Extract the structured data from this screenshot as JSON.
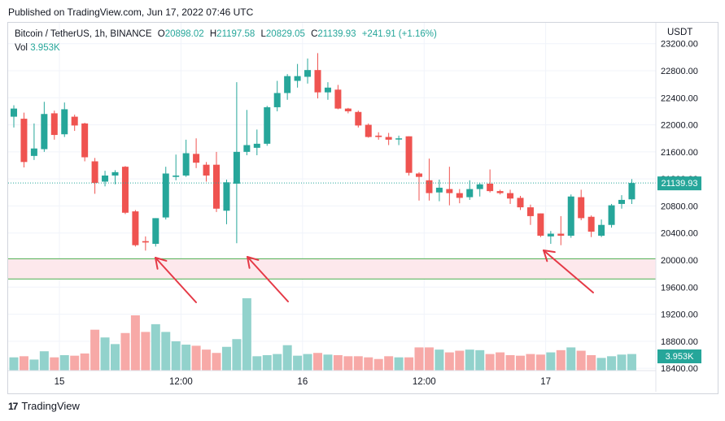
{
  "header": {
    "published_text": "Published on TradingView.com, Jun 17, 2022 07:46 UTC"
  },
  "legend": {
    "symbol": "Bitcoin / TetherUS, 1h, BINANCE",
    "open_label": "O",
    "open": "20898.02",
    "high_label": "H",
    "high": "21197.58",
    "low_label": "L",
    "low": "20829.05",
    "close_label": "C",
    "close": "21139.93",
    "change": "+241.91 (+1.16%)",
    "vol_label": "Vol",
    "vol": "3.953K"
  },
  "price_axis": {
    "currency": "USDT",
    "current_price_label": "21139.93",
    "current_volume_label": "3.953K"
  },
  "footer": {
    "brand": "TradingView"
  },
  "colors": {
    "up": "#26a69a",
    "down": "#ef5350",
    "zone_fill": "#fde8ec",
    "zone_line": "#4caf50",
    "annotation": "#e53946",
    "current_line": "#26a69a"
  },
  "chart_data": {
    "type": "candlestick",
    "title": "Bitcoin / TetherUS, 1h, BINANCE",
    "y_axis": {
      "ticks": [
        18400,
        18800,
        19200,
        19600,
        20000,
        20400,
        20800,
        21200,
        21600,
        22000,
        22400,
        22800,
        23200
      ],
      "tick_labels": [
        "18400.00",
        "18800.00",
        "19200.00",
        "19600.00",
        "20000.00",
        "20400.00",
        "20800.00",
        "21200.00",
        "21600.00",
        "22000.00",
        "22400.00",
        "22800.00",
        "23200.00"
      ],
      "range": [
        18400,
        23230
      ]
    },
    "x_axis": {
      "tick_labels": [
        "15",
        "12:00",
        "16",
        "12:00",
        "17"
      ],
      "tick_candle_index": [
        4.5,
        16.5,
        28.5,
        40.5,
        52.5
      ]
    },
    "current_price": 21139.93,
    "support_zone": [
      19720,
      20020
    ],
    "candles": [
      {
        "o": 22120,
        "h": 22290,
        "l": 21960,
        "c": 22240
      },
      {
        "o": 22090,
        "h": 22180,
        "l": 21370,
        "c": 21450
      },
      {
        "o": 21540,
        "h": 22020,
        "l": 21480,
        "c": 21650
      },
      {
        "o": 21640,
        "h": 22340,
        "l": 21600,
        "c": 22160
      },
      {
        "o": 22170,
        "h": 22210,
        "l": 21780,
        "c": 21850
      },
      {
        "o": 21860,
        "h": 22330,
        "l": 21820,
        "c": 22230
      },
      {
        "o": 22120,
        "h": 22150,
        "l": 21910,
        "c": 21990
      },
      {
        "o": 22020,
        "h": 22030,
        "l": 21460,
        "c": 21520
      },
      {
        "o": 21460,
        "h": 21510,
        "l": 20980,
        "c": 21140
      },
      {
        "o": 21160,
        "h": 21320,
        "l": 21090,
        "c": 21250
      },
      {
        "o": 21250,
        "h": 21330,
        "l": 21120,
        "c": 21300
      },
      {
        "o": 21380,
        "h": 21390,
        "l": 20680,
        "c": 20700
      },
      {
        "o": 20720,
        "h": 20740,
        "l": 20200,
        "c": 20220
      },
      {
        "o": 20280,
        "h": 20350,
        "l": 20140,
        "c": 20260
      },
      {
        "o": 20240,
        "h": 20620,
        "l": 20200,
        "c": 20620
      },
      {
        "o": 20630,
        "h": 21380,
        "l": 20600,
        "c": 21280
      },
      {
        "o": 21230,
        "h": 21560,
        "l": 21180,
        "c": 21250
      },
      {
        "o": 21250,
        "h": 21780,
        "l": 21230,
        "c": 21580
      },
      {
        "o": 21570,
        "h": 21800,
        "l": 21360,
        "c": 21440
      },
      {
        "o": 21410,
        "h": 21450,
        "l": 21160,
        "c": 21250
      },
      {
        "o": 21410,
        "h": 21600,
        "l": 20710,
        "c": 20760
      },
      {
        "o": 20730,
        "h": 21190,
        "l": 20530,
        "c": 21150
      },
      {
        "o": 21130,
        "h": 22630,
        "l": 20250,
        "c": 21600
      },
      {
        "o": 21600,
        "h": 22220,
        "l": 21550,
        "c": 21700
      },
      {
        "o": 21660,
        "h": 21930,
        "l": 21550,
        "c": 21720
      },
      {
        "o": 21720,
        "h": 22280,
        "l": 21690,
        "c": 22260
      },
      {
        "o": 22260,
        "h": 22650,
        "l": 22200,
        "c": 22470
      },
      {
        "o": 22470,
        "h": 22750,
        "l": 22370,
        "c": 22720
      },
      {
        "o": 22650,
        "h": 22900,
        "l": 22550,
        "c": 22720
      },
      {
        "o": 22710,
        "h": 22980,
        "l": 22610,
        "c": 22810
      },
      {
        "o": 22810,
        "h": 23060,
        "l": 22390,
        "c": 22480
      },
      {
        "o": 22480,
        "h": 22630,
        "l": 22370,
        "c": 22550
      },
      {
        "o": 22520,
        "h": 22590,
        "l": 22230,
        "c": 22240
      },
      {
        "o": 22240,
        "h": 22250,
        "l": 22170,
        "c": 22200
      },
      {
        "o": 22190,
        "h": 22210,
        "l": 21960,
        "c": 21990
      },
      {
        "o": 22000,
        "h": 22020,
        "l": 21810,
        "c": 21820
      },
      {
        "o": 21840,
        "h": 21890,
        "l": 21780,
        "c": 21820
      },
      {
        "o": 21820,
        "h": 21880,
        "l": 21700,
        "c": 21780
      },
      {
        "o": 21790,
        "h": 21840,
        "l": 21700,
        "c": 21800
      },
      {
        "o": 21830,
        "h": 21830,
        "l": 21250,
        "c": 21290
      },
      {
        "o": 21280,
        "h": 21300,
        "l": 20880,
        "c": 21230
      },
      {
        "o": 21180,
        "h": 21500,
        "l": 20880,
        "c": 20990
      },
      {
        "o": 21000,
        "h": 21190,
        "l": 20870,
        "c": 21070
      },
      {
        "o": 21050,
        "h": 21380,
        "l": 20810,
        "c": 20990
      },
      {
        "o": 20990,
        "h": 21050,
        "l": 20840,
        "c": 20920
      },
      {
        "o": 20930,
        "h": 21180,
        "l": 20890,
        "c": 21050
      },
      {
        "o": 21050,
        "h": 21140,
        "l": 20940,
        "c": 21120
      },
      {
        "o": 21130,
        "h": 21340,
        "l": 21000,
        "c": 21020
      },
      {
        "o": 21020,
        "h": 21040,
        "l": 20970,
        "c": 20990
      },
      {
        "o": 20990,
        "h": 21040,
        "l": 20830,
        "c": 20910
      },
      {
        "o": 20920,
        "h": 20950,
        "l": 20740,
        "c": 20780
      },
      {
        "o": 20780,
        "h": 20820,
        "l": 20520,
        "c": 20650
      },
      {
        "o": 20690,
        "h": 20690,
        "l": 20340,
        "c": 20360
      },
      {
        "o": 20350,
        "h": 20430,
        "l": 20240,
        "c": 20390
      },
      {
        "o": 20390,
        "h": 20650,
        "l": 20220,
        "c": 20360
      },
      {
        "o": 20360,
        "h": 20970,
        "l": 20330,
        "c": 20940
      },
      {
        "o": 20930,
        "h": 21040,
        "l": 20590,
        "c": 20620
      },
      {
        "o": 20640,
        "h": 20660,
        "l": 20340,
        "c": 20420
      },
      {
        "o": 20360,
        "h": 20600,
        "l": 20340,
        "c": 20520
      },
      {
        "o": 20520,
        "h": 20830,
        "l": 20480,
        "c": 20810
      },
      {
        "o": 20830,
        "h": 20960,
        "l": 20760,
        "c": 20890
      },
      {
        "o": 20898.02,
        "h": 21197.58,
        "l": 20829.05,
        "c": 21139.93
      }
    ],
    "volume": {
      "max_reference": 1.0,
      "values": [
        0.24,
        0.26,
        0.2,
        0.35,
        0.24,
        0.28,
        0.27,
        0.31,
        0.74,
        0.6,
        0.48,
        0.68,
        1.0,
        0.7,
        0.84,
        0.7,
        0.53,
        0.47,
        0.45,
        0.38,
        0.32,
        0.43,
        0.57,
        1.31,
        0.26,
        0.28,
        0.3,
        0.46,
        0.27,
        0.3,
        0.32,
        0.29,
        0.28,
        0.26,
        0.26,
        0.24,
        0.21,
        0.26,
        0.24,
        0.24,
        0.42,
        0.42,
        0.38,
        0.33,
        0.36,
        0.38,
        0.37,
        0.3,
        0.33,
        0.28,
        0.27,
        0.3,
        0.29,
        0.33,
        0.37,
        0.42,
        0.36,
        0.28,
        0.23,
        0.26,
        0.29,
        0.3
      ]
    }
  }
}
